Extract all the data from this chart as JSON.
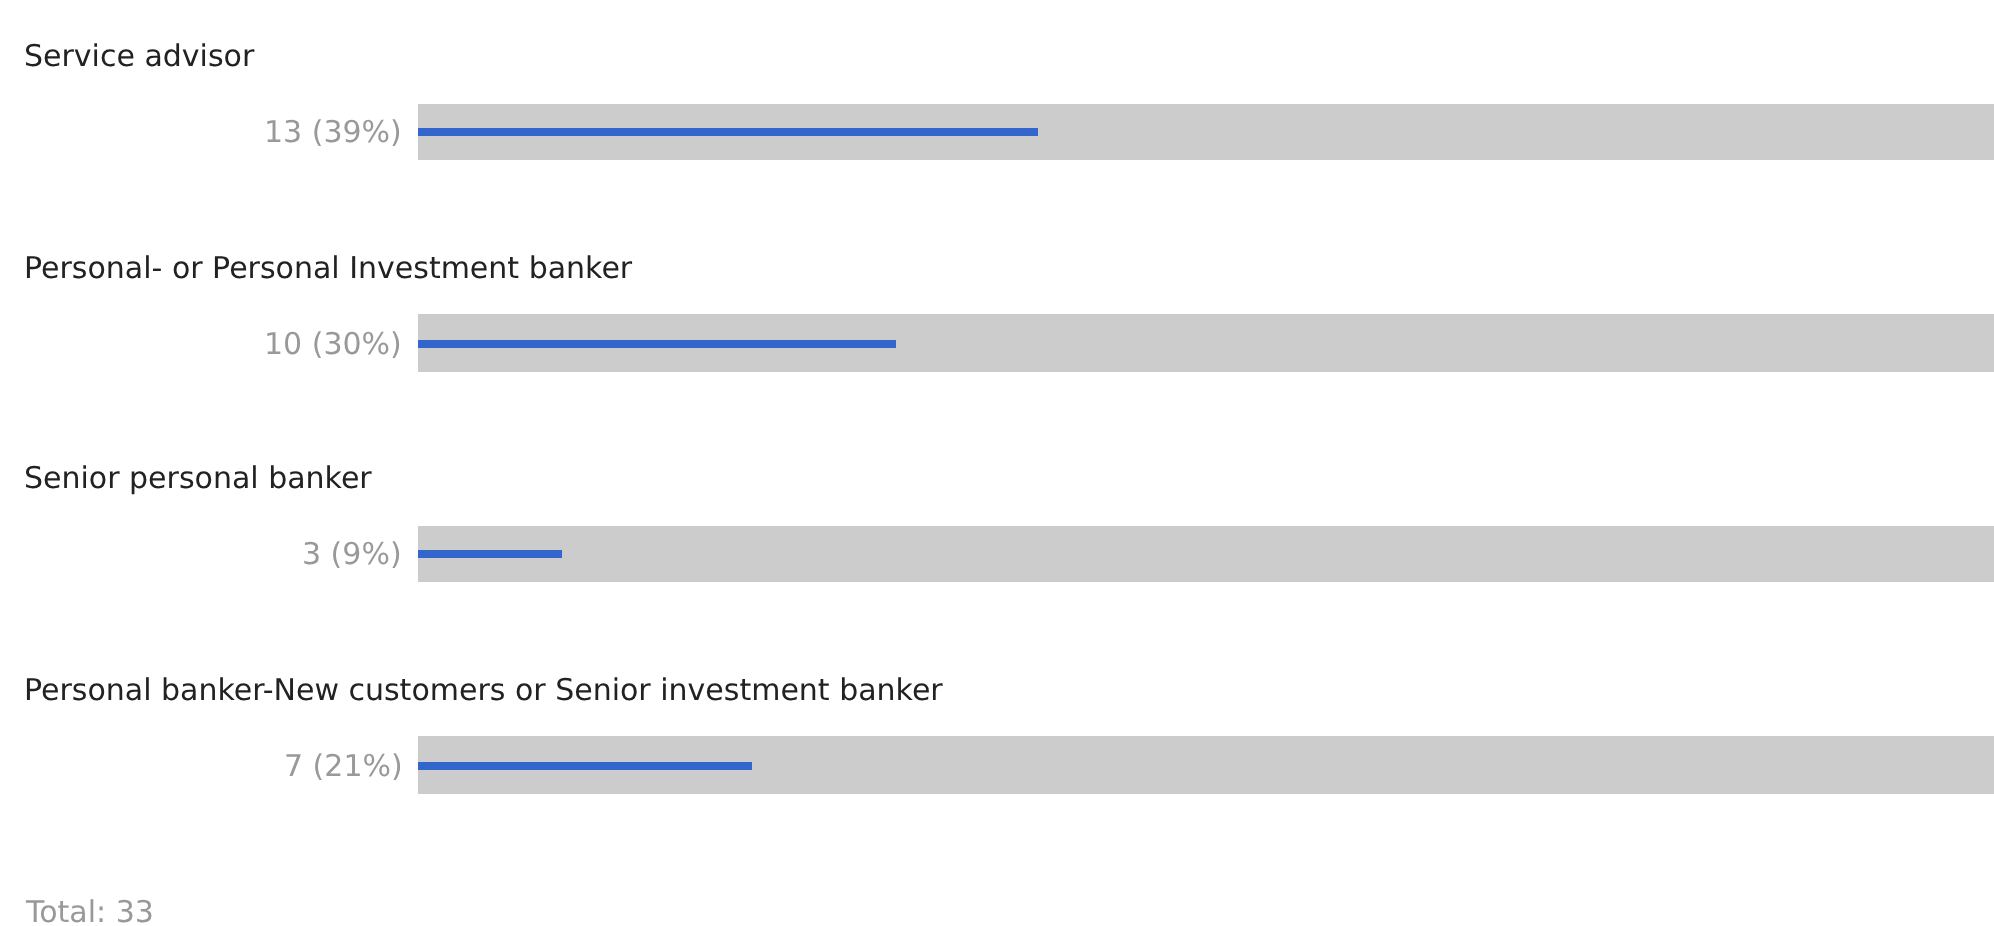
{
  "chart_data": {
    "type": "bar",
    "orientation": "horizontal",
    "categories": [
      "Service advisor",
      "Personal- or Personal Investment banker",
      "Senior personal banker",
      "Personal banker-New customers or Senior investment banker"
    ],
    "series": [
      {
        "color": "#cccccc",
        "values": [
          33,
          33,
          33,
          33
        ]
      },
      {
        "color": "#3366cc",
        "values": [
          13,
          10,
          3,
          7
        ],
        "value_labels": [
          "13 (39%)",
          "10 (30%)",
          "3 (9%)",
          "7 (21%)"
        ]
      }
    ],
    "tick_labels": false,
    "annotations": [
      "Total: 33"
    ]
  }
}
